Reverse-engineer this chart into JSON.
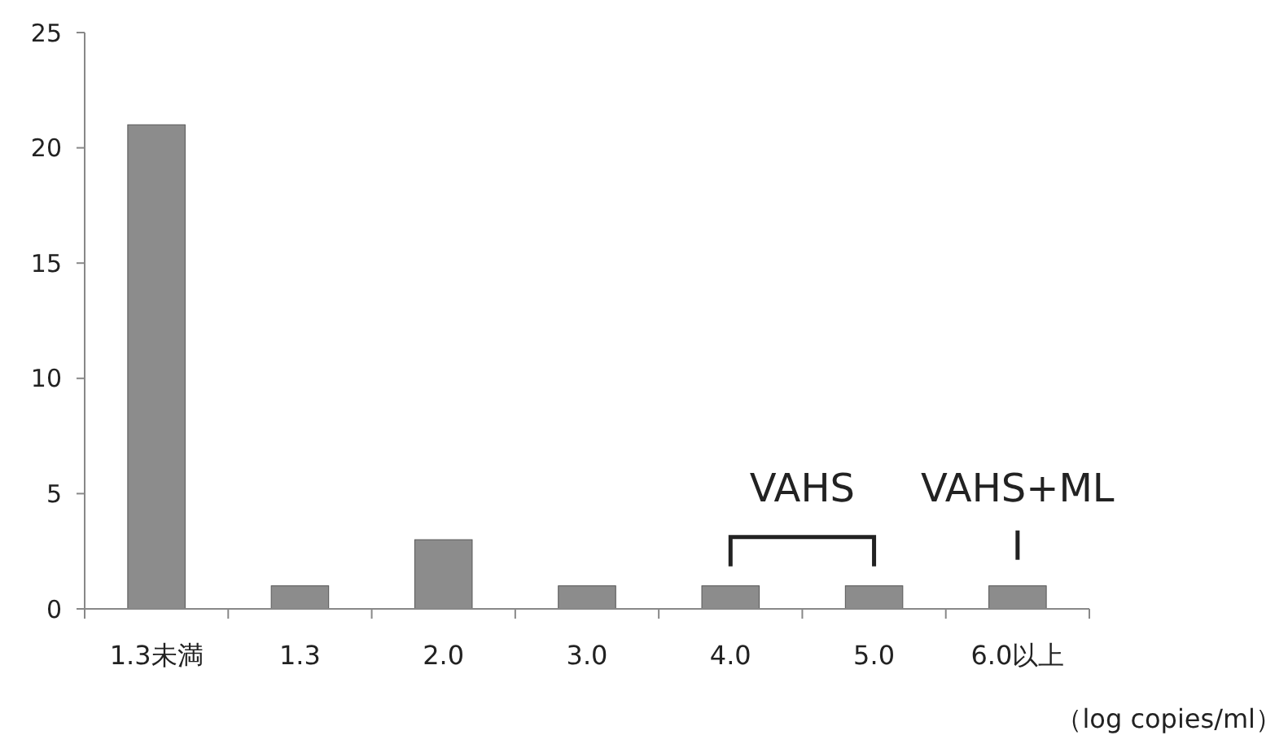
{
  "chart_data": {
    "type": "bar",
    "categories": [
      "1.3未満",
      "1.3",
      "2.0",
      "3.0",
      "4.0",
      "5.0",
      "6.0以上"
    ],
    "values": [
      21,
      1,
      3,
      1,
      1,
      1,
      1
    ],
    "color": "#8c8c8c",
    "ylim": [
      0,
      25
    ],
    "yticks": [
      0,
      5,
      10,
      15,
      20,
      25
    ],
    "xlabel": "（log copies/ml）",
    "grid": false,
    "annotations": [
      {
        "text": "VAHS",
        "x": "4.0",
        "y": 1
      },
      {
        "text": "VAHS+ML",
        "x": "6.0以上",
        "y": 1
      }
    ]
  }
}
